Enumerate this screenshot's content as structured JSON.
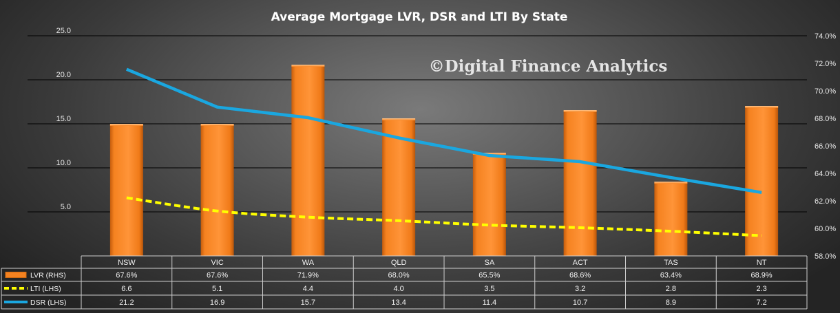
{
  "chart_data": {
    "type": "bar",
    "title": "Average Mortgage  LVR, DSR and LTI By State",
    "watermark": "©Digital Finance Analytics",
    "categories": [
      "NSW",
      "VIC",
      "WA",
      "QLD",
      "SA",
      "ACT",
      "TAS",
      "NT"
    ],
    "series": [
      {
        "name": "LVR (RHS)",
        "kind": "bar",
        "axis": "right",
        "color": "#f58220",
        "values": [
          67.6,
          67.6,
          71.9,
          68.0,
          65.5,
          68.6,
          63.4,
          68.9
        ],
        "labels": [
          "67.6%",
          "67.6%",
          "71.9%",
          "68.0%",
          "65.5%",
          "68.6%",
          "63.4%",
          "68.9%"
        ]
      },
      {
        "name": "LTI (LHS)",
        "kind": "line-dashed",
        "axis": "left",
        "color": "#ffff00",
        "values": [
          6.6,
          5.1,
          4.4,
          4.0,
          3.5,
          3.2,
          2.8,
          2.3
        ],
        "labels": [
          "6.6",
          "5.1",
          "4.4",
          "4.0",
          "3.5",
          "3.2",
          "2.8",
          "2.3"
        ]
      },
      {
        "name": "DSR (LHS)",
        "kind": "line",
        "axis": "left",
        "color": "#1aa7e0",
        "values": [
          21.2,
          16.9,
          15.7,
          13.4,
          11.4,
          10.7,
          8.9,
          7.2
        ],
        "labels": [
          "21.2",
          "16.9",
          "15.7",
          "13.4",
          "11.4",
          "10.7",
          "8.9",
          "7.2"
        ]
      }
    ],
    "y_left": {
      "min": 0,
      "max": 25,
      "ticks": [
        5,
        10,
        15,
        20,
        25
      ],
      "tick_labels": [
        "5.0",
        "10.0",
        "15.0",
        "20.0",
        "25.0"
      ]
    },
    "y_right": {
      "min": 58,
      "max": 74,
      "ticks": [
        58,
        60,
        62,
        64,
        66,
        68,
        70,
        72,
        74
      ],
      "tick_labels": [
        "58.0%",
        "60.0%",
        "62.0%",
        "64.0%",
        "66.0%",
        "68.0%",
        "70.0%",
        "72.0%",
        "74.0%"
      ]
    },
    "grid": true,
    "data_table": true
  }
}
